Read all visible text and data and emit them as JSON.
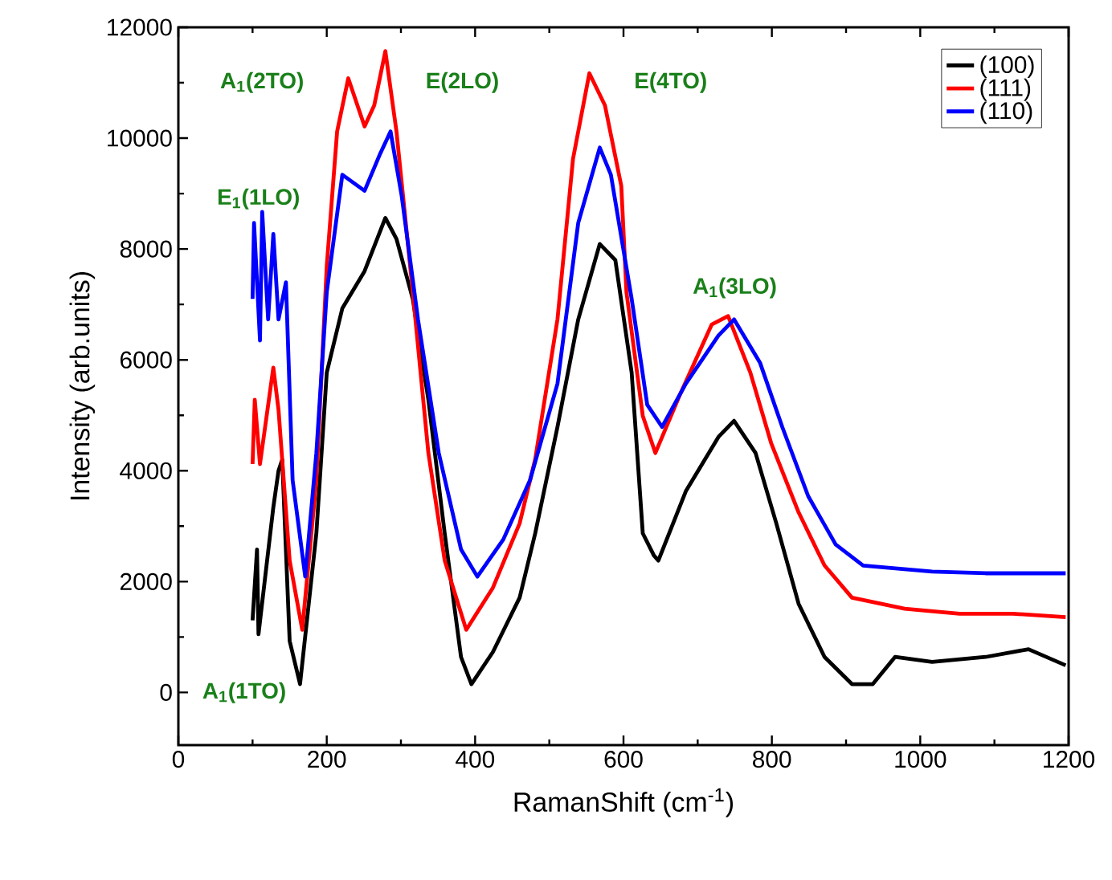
{
  "chart_data": {
    "type": "line",
    "xlabel": "RamanShift (cm$^{-1}$)",
    "ylabel": "Intensity (arb.units)",
    "xlim": [
      0,
      1200
    ],
    "ylim": [
      -950,
      12000
    ],
    "xticks": [
      0,
      200,
      400,
      600,
      800,
      1000,
      1200
    ],
    "yticks": [
      0,
      2000,
      4000,
      6000,
      8000,
      10000,
      12000
    ],
    "legend": "top right",
    "grid": false,
    "annotations": [
      "A$_{1}$(2TO)",
      "E(2LO)",
      "E$_{1}$(1LO)",
      "A$_{1}$(1TO)",
      "E(4TO)",
      "A$_{1}$(3LO)"
    ],
    "series": [
      {
        "name": "(100)",
        "color": "#000000",
        "x": [
          100,
          106,
          108,
          128,
          135,
          140,
          150,
          164,
          186,
          200,
          221,
          251,
          279,
          294,
          316,
          337,
          359,
          381,
          395,
          424,
          460,
          481,
          511,
          539,
          568,
          589,
          611,
          626,
          641,
          647,
          684,
          728,
          749,
          778,
          806,
          836,
          871,
          908,
          936,
          966,
          1016,
          1088,
          1146,
          1196
        ],
        "values": [
          1300,
          2580,
          1050,
          3340,
          4000,
          4200,
          930,
          150,
          2870,
          5770,
          6930,
          7600,
          8560,
          8180,
          7100,
          5280,
          2870,
          640,
          150,
          730,
          1710,
          2870,
          4790,
          6730,
          8090,
          7800,
          5770,
          2870,
          2470,
          2380,
          3630,
          4610,
          4900,
          4320,
          3050,
          1600,
          640,
          150,
          150,
          640,
          550,
          640,
          780,
          490
        ]
      },
      {
        "name": "(111)",
        "color": "#ff0000",
        "x": [
          100,
          103,
          110,
          128,
          135,
          150,
          167,
          186,
          200,
          214,
          229,
          251,
          264,
          279,
          294,
          316,
          337,
          359,
          388,
          424,
          460,
          481,
          511,
          532,
          554,
          575,
          597,
          604,
          626,
          643,
          676,
          719,
          741,
          771,
          799,
          836,
          871,
          908,
          979,
          1053,
          1125,
          1196
        ],
        "values": [
          4120,
          5280,
          4120,
          5860,
          5100,
          2380,
          1130,
          3830,
          7690,
          10120,
          11080,
          10210,
          10590,
          11570,
          10120,
          7220,
          4320,
          2380,
          1130,
          1890,
          3050,
          4210,
          6730,
          9630,
          11170,
          10590,
          9140,
          7220,
          4990,
          4320,
          5370,
          6640,
          6790,
          5770,
          4500,
          3250,
          2290,
          1710,
          1510,
          1420,
          1420,
          1360
        ]
      },
      {
        "name": "(110)",
        "color": "#0000ff",
        "x": [
          100,
          102,
          110,
          113,
          121,
          128,
          135,
          145,
          154,
          171,
          186,
          200,
          221,
          251,
          272,
          286,
          301,
          323,
          351,
          381,
          403,
          438,
          474,
          511,
          539,
          568,
          583,
          611,
          632,
          652,
          684,
          728,
          749,
          784,
          814,
          849,
          886,
          923,
          1016,
          1088,
          1196
        ],
        "values": [
          7100,
          8470,
          6350,
          8670,
          6730,
          8270,
          6730,
          7400,
          3830,
          2090,
          4320,
          7220,
          9340,
          9050,
          9720,
          10120,
          8960,
          6730,
          4320,
          2580,
          2090,
          2760,
          3830,
          5570,
          8470,
          9830,
          9340,
          7100,
          5190,
          4790,
          5570,
          6440,
          6730,
          5950,
          4790,
          3540,
          2670,
          2290,
          2180,
          2150,
          2150
        ]
      }
    ]
  }
}
